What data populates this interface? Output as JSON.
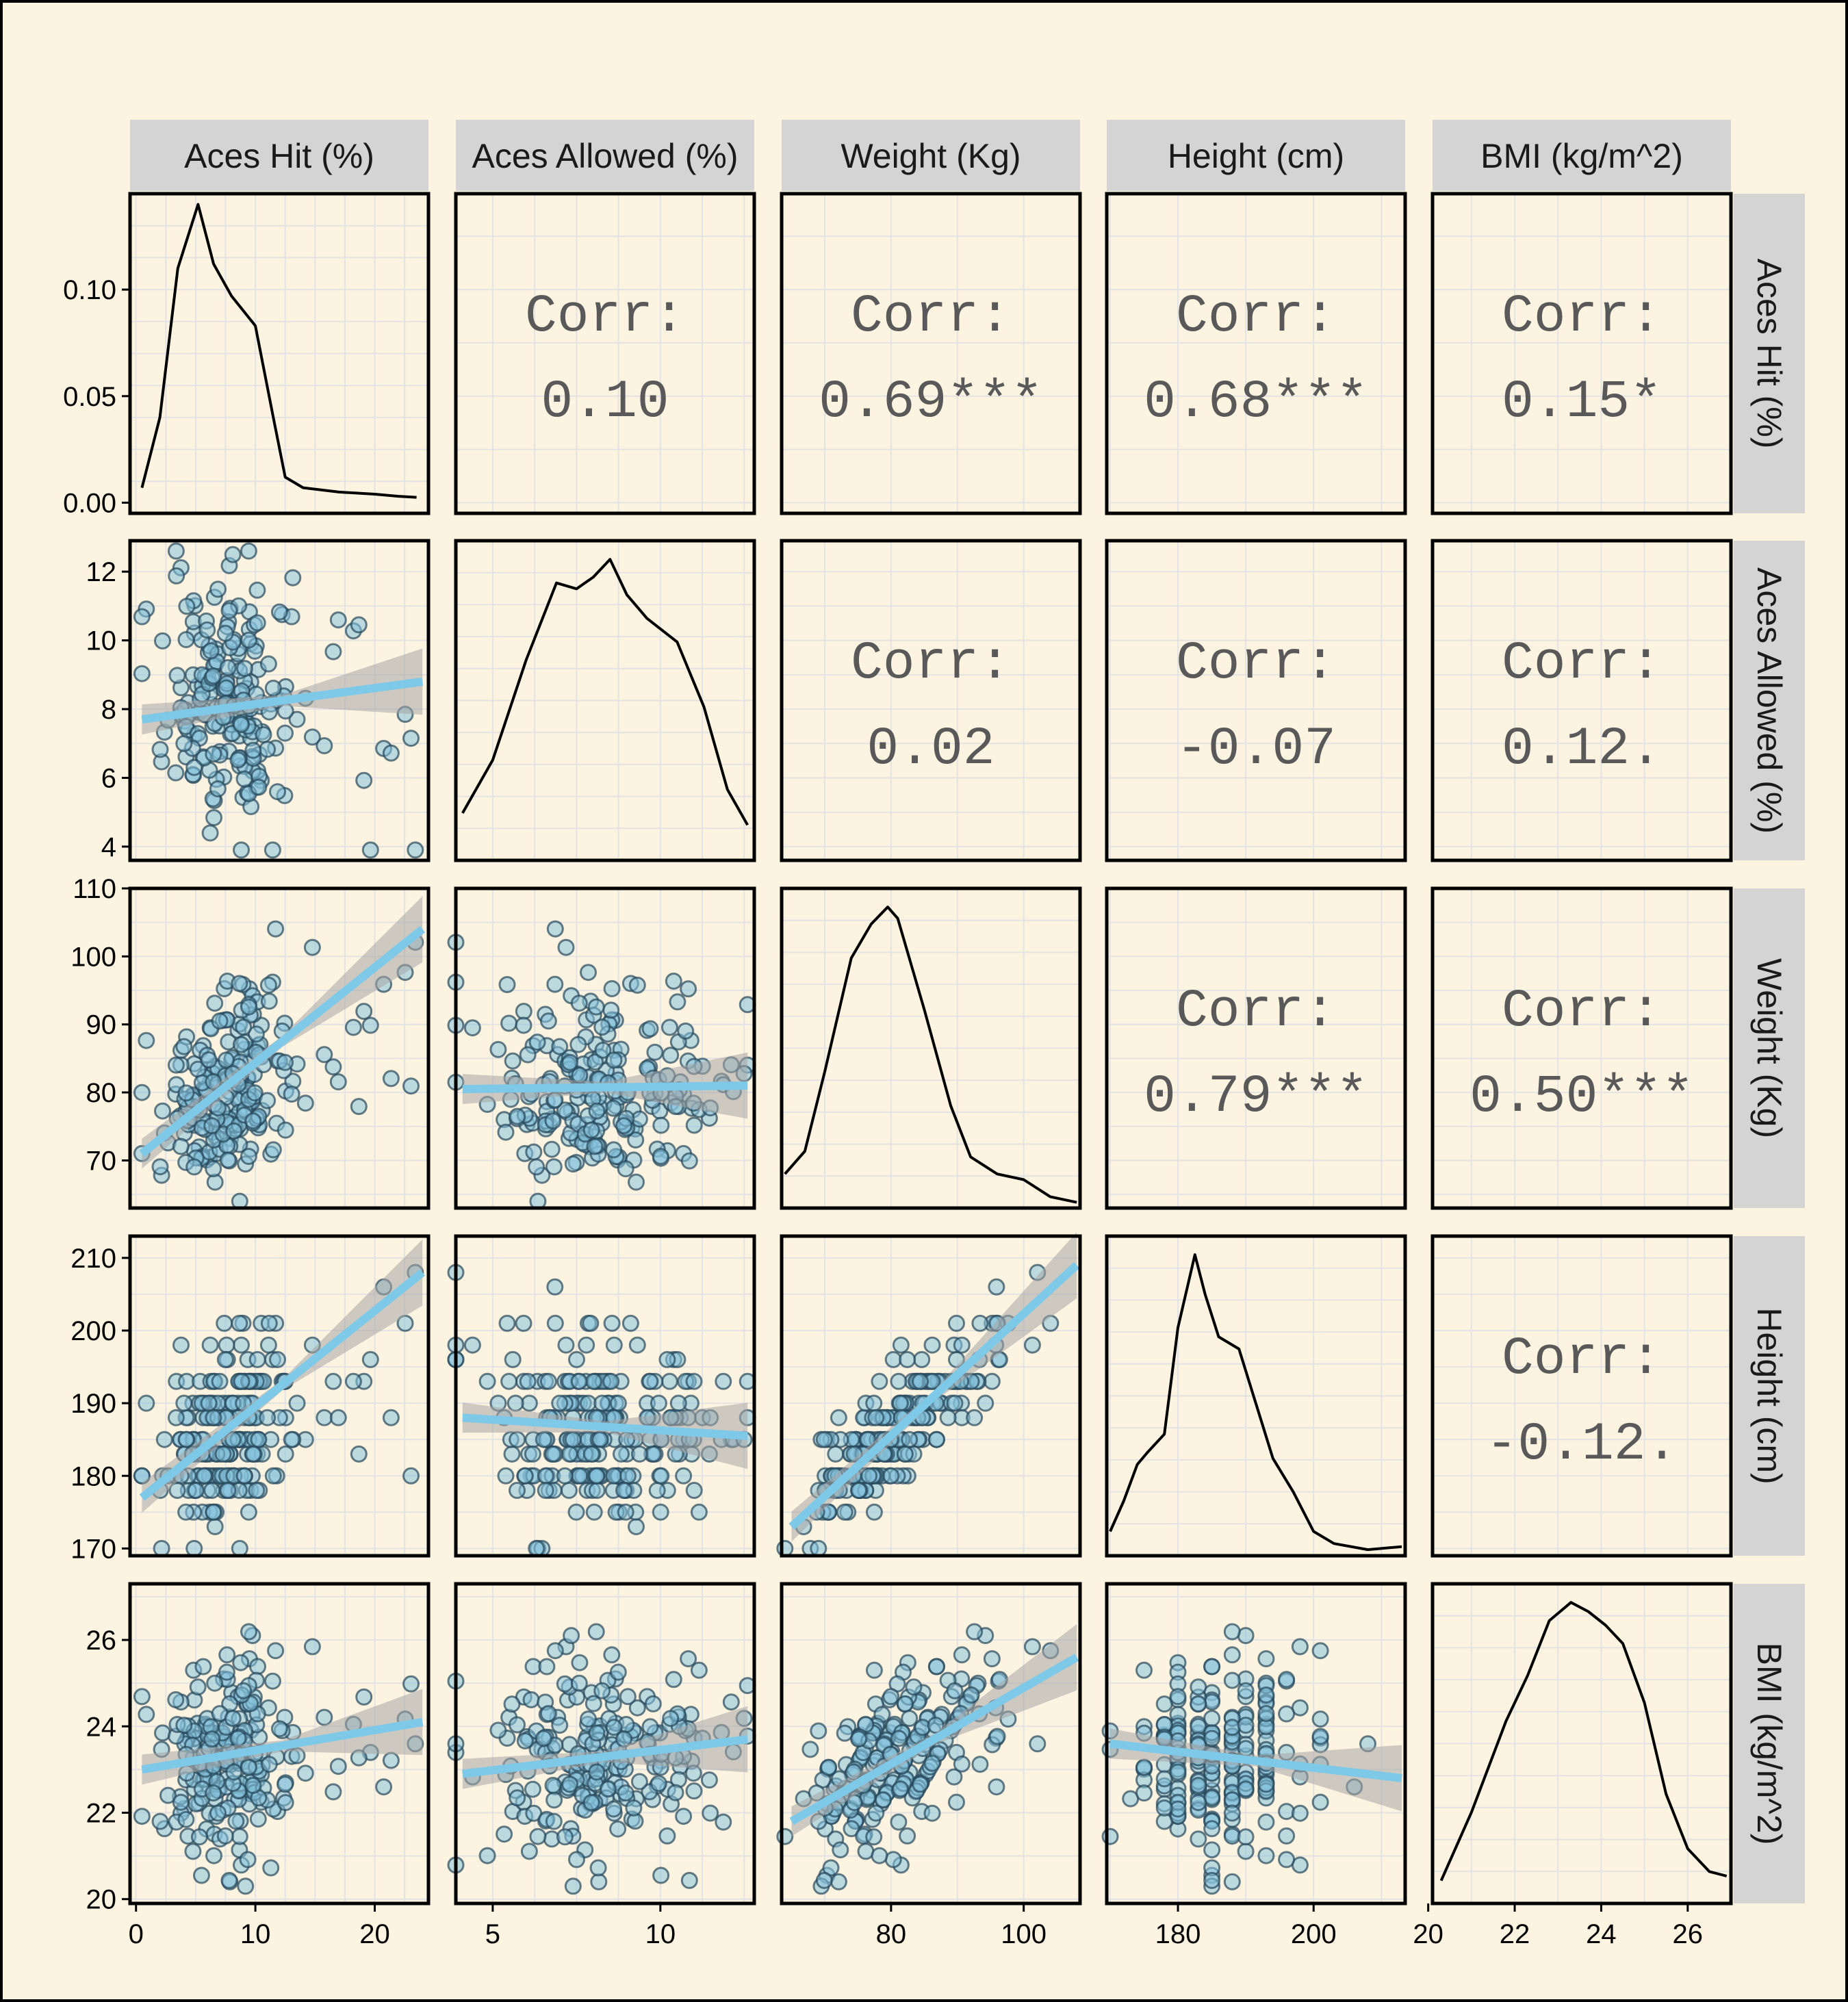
{
  "chart_data": {
    "type": "scatter-matrix",
    "variables": [
      "Aces Hit (%)",
      "Aces Allowed (%)",
      "Weight (Kg)",
      "Height (cm)",
      "BMI (kg/m^2)"
    ],
    "strip_labels": {
      "top": [
        "Aces Hit (%)",
        "Aces Allowed (%)",
        "Weight (Kg)",
        "Height (cm)",
        "BMI (kg/m^2)"
      ],
      "right": [
        "Aces Hit (%)",
        "Aces Allowed (%)",
        "Weight (Kg)",
        "Height (cm)",
        "BMI (kg/m^2)"
      ]
    },
    "correlations": [
      {
        "row": 0,
        "col": 1,
        "label": "Corr:",
        "value": "0.10"
      },
      {
        "row": 0,
        "col": 2,
        "label": "Corr:",
        "value": "0.69***"
      },
      {
        "row": 0,
        "col": 3,
        "label": "Corr:",
        "value": "0.68***"
      },
      {
        "row": 0,
        "col": 4,
        "label": "Corr:",
        "value": "0.15*"
      },
      {
        "row": 1,
        "col": 2,
        "label": "Corr:",
        "value": "0.02"
      },
      {
        "row": 1,
        "col": 3,
        "label": "Corr:",
        "value": "-0.07"
      },
      {
        "row": 1,
        "col": 4,
        "label": "Corr:",
        "value": "0.12."
      },
      {
        "row": 2,
        "col": 3,
        "label": "Corr:",
        "value": "0.79***"
      },
      {
        "row": 2,
        "col": 4,
        "label": "Corr:",
        "value": "0.50***"
      },
      {
        "row": 3,
        "col": 4,
        "label": "Corr:",
        "value": "-0.12."
      }
    ],
    "x_axes": [
      {
        "range": [
          -0.5,
          24.5
        ],
        "ticks": [
          0,
          10,
          20
        ],
        "tick_labels": [
          "0",
          "10",
          "20"
        ]
      },
      {
        "range": [
          3.9,
          12.8
        ],
        "ticks": [
          5,
          10
        ],
        "tick_labels": [
          "5",
          "10"
        ]
      },
      {
        "range": [
          63.5,
          108.5
        ],
        "ticks": [
          80,
          100
        ],
        "tick_labels": [
          "80",
          "100"
        ]
      },
      {
        "range": [
          169.5,
          213.5
        ],
        "ticks": [
          180,
          200
        ],
        "tick_labels": [
          "180",
          "200"
        ]
      },
      {
        "range": [
          20.1,
          27.0
        ],
        "ticks": [
          20,
          22,
          24,
          26
        ],
        "tick_labels": [
          "20",
          "22",
          "24",
          "26"
        ]
      }
    ],
    "y_axes": [
      {
        "range": [
          -0.005,
          0.145
        ],
        "ticks": [
          0,
          0.05,
          0.1
        ],
        "tick_labels": [
          "0.00",
          "0.05",
          "0.10"
        ]
      },
      {
        "range": [
          3.6,
          12.9
        ],
        "ticks": [
          4,
          6,
          8,
          10,
          12
        ],
        "tick_labels": [
          "4",
          "6",
          "8",
          "10",
          "12"
        ]
      },
      {
        "range": [
          63,
          110
        ],
        "ticks": [
          70,
          80,
          90,
          100,
          110
        ],
        "tick_labels": [
          "70",
          "80",
          "90",
          "100",
          "110"
        ]
      },
      {
        "range": [
          169,
          213
        ],
        "ticks": [
          170,
          180,
          190,
          200,
          210
        ],
        "tick_labels": [
          "170",
          "180",
          "190",
          "200",
          "210"
        ]
      },
      {
        "range": [
          19.9,
          27.3
        ],
        "ticks": [
          20,
          22,
          24,
          26
        ],
        "tick_labels": [
          "20",
          "22",
          "24",
          "26"
        ]
      }
    ],
    "densities": [
      {
        "var": 0,
        "x": [
          0.5,
          2,
          3.5,
          5.2,
          6.5,
          8,
          10,
          11.5,
          12.5,
          14,
          17,
          20,
          22,
          23.5
        ],
        "y": [
          0.007,
          0.04,
          0.11,
          0.14,
          0.112,
          0.097,
          0.083,
          0.04,
          0.012,
          0.007,
          0.005,
          0.004,
          0.003,
          0.0025
        ]
      },
      {
        "var": 1,
        "x": [
          4.1,
          5,
          6,
          6.9,
          7.5,
          8,
          8.5,
          9,
          9.6,
          10.5,
          11.3,
          12,
          12.6
        ],
        "y": [
          0.08,
          0.17,
          0.34,
          0.47,
          0.46,
          0.48,
          0.51,
          0.45,
          0.41,
          0.37,
          0.26,
          0.12,
          0.06
        ]
      },
      {
        "var": 2,
        "x": [
          64,
          67,
          70,
          74,
          77,
          79.5,
          81,
          85,
          89,
          92,
          96,
          100,
          104,
          108
        ],
        "y": [
          0.006,
          0.01,
          0.024,
          0.044,
          0.05,
          0.053,
          0.051,
          0.035,
          0.018,
          0.009,
          0.006,
          0.005,
          0.002,
          0.001
        ]
      },
      {
        "var": 3,
        "x": [
          170,
          172,
          174,
          175.5,
          178,
          180,
          182.5,
          184,
          186,
          189,
          191.5,
          194,
          197,
          200,
          203,
          208,
          213
        ],
        "y": [
          0.008,
          0.018,
          0.03,
          0.034,
          0.04,
          0.075,
          0.099,
          0.086,
          0.072,
          0.068,
          0.05,
          0.032,
          0.021,
          0.008,
          0.004,
          0.002,
          0.003
        ]
      },
      {
        "var": 4,
        "x": [
          20.3,
          21,
          21.8,
          22.3,
          22.8,
          23.3,
          23.7,
          24.1,
          24.5,
          25,
          25.5,
          26,
          26.5,
          26.9
        ],
        "y": [
          0.025,
          0.1,
          0.2,
          0.25,
          0.31,
          0.33,
          0.32,
          0.305,
          0.285,
          0.22,
          0.12,
          0.06,
          0.035,
          0.03
        ]
      }
    ],
    "smooth_lines": [
      {
        "row": 1,
        "col": 0,
        "x": [
          0.5,
          24
        ],
        "y": [
          7.7,
          8.8
        ]
      },
      {
        "row": 2,
        "col": 0,
        "x": [
          0.5,
          24
        ],
        "y": [
          71,
          104
        ]
      },
      {
        "row": 2,
        "col": 1,
        "x": [
          4.1,
          12.6
        ],
        "y": [
          80.5,
          81
        ]
      },
      {
        "row": 3,
        "col": 0,
        "x": [
          0.5,
          24
        ],
        "y": [
          177,
          208
        ]
      },
      {
        "row": 3,
        "col": 1,
        "x": [
          4.1,
          12.6
        ],
        "y": [
          188,
          185.5
        ]
      },
      {
        "row": 3,
        "col": 2,
        "x": [
          65,
          108
        ],
        "y": [
          173,
          209
        ]
      },
      {
        "row": 4,
        "col": 0,
        "x": [
          0.5,
          24
        ],
        "y": [
          23.0,
          24.1
        ]
      },
      {
        "row": 4,
        "col": 1,
        "x": [
          4.1,
          12.6
        ],
        "y": [
          22.9,
          23.7
        ]
      },
      {
        "row": 4,
        "col": 2,
        "x": [
          65,
          108
        ],
        "y": [
          21.8,
          25.6
        ]
      },
      {
        "row": 4,
        "col": 3,
        "x": [
          170,
          213
        ],
        "y": [
          23.6,
          22.8
        ]
      }
    ],
    "point_count": 220,
    "grid": true,
    "colors": {
      "background": "#fdf3e1",
      "panel_border": "#000000",
      "strip_fill": "#d4d4d4",
      "grid_line": "#e3e3e3",
      "point_fill": "#87c2dc",
      "point_stroke": "#27475a",
      "smooth_line": "#7ec8e8",
      "ribbon": "#a6a6a6",
      "corr_text": "#595959"
    }
  }
}
